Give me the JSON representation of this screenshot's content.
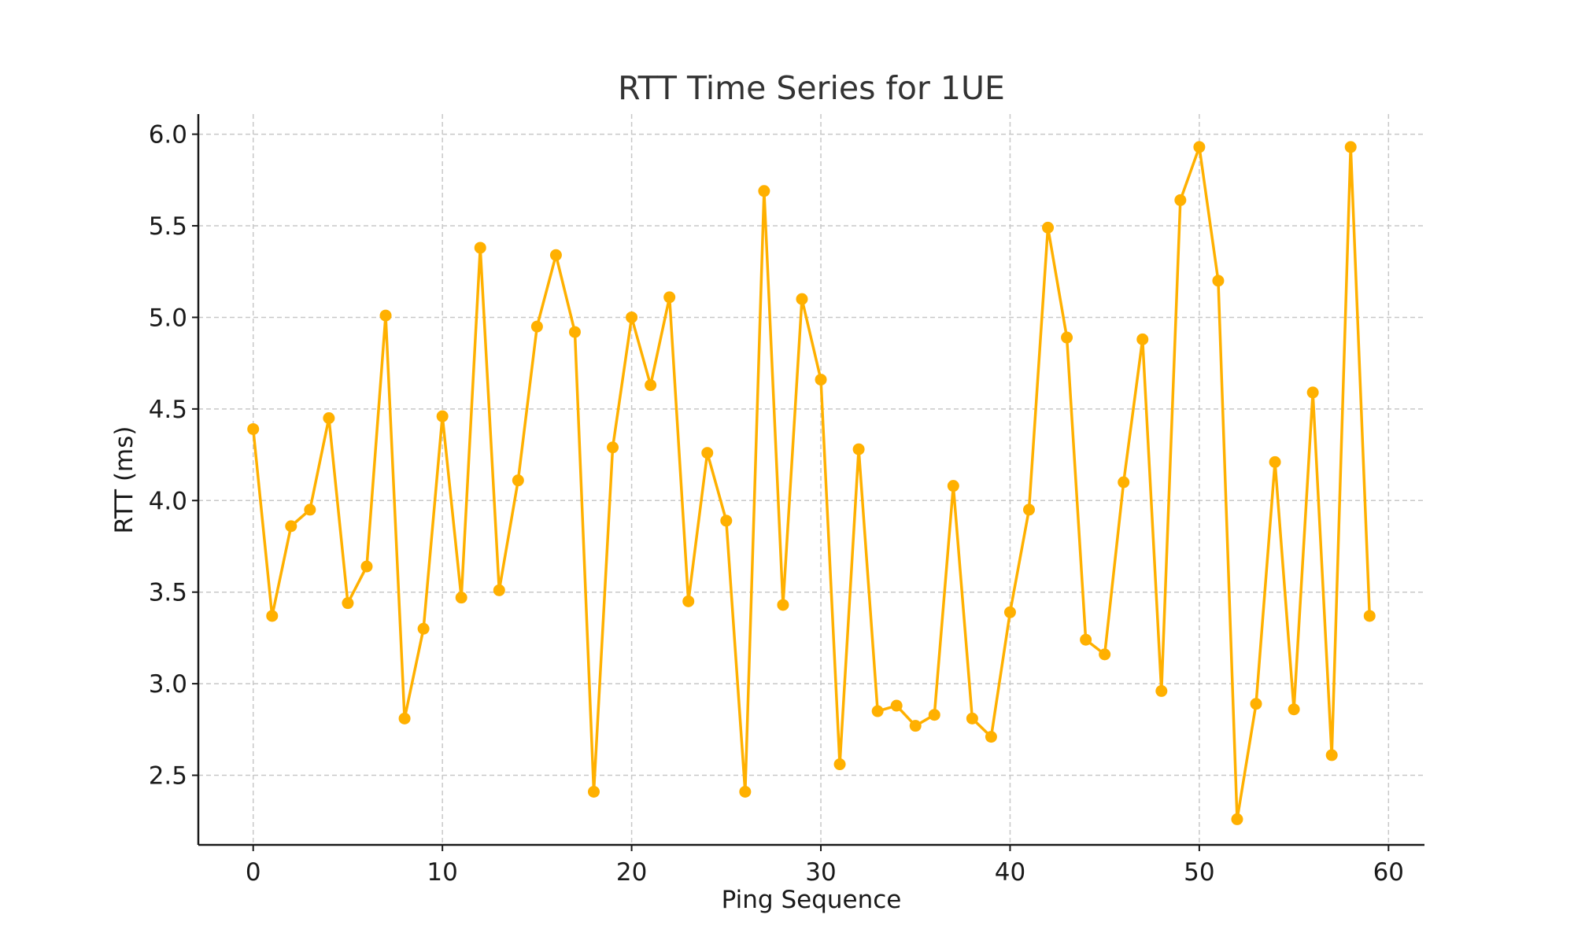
{
  "chart_data": {
    "type": "line",
    "title": "RTT Time Series for 1UE",
    "xlabel": "Ping Sequence",
    "ylabel": "RTT (ms)",
    "xlim": [
      -2.9,
      61.9
    ],
    "ylim": [
      2.12,
      6.11
    ],
    "xticks": [
      0,
      10,
      20,
      30,
      40,
      50,
      60
    ],
    "xtick_labels": [
      "0",
      "10",
      "20",
      "30",
      "40",
      "50",
      "60"
    ],
    "yticks": [
      2.5,
      3.0,
      3.5,
      4.0,
      4.5,
      5.0,
      5.5,
      6.0
    ],
    "ytick_labels": [
      "2.5",
      "3.0",
      "3.5",
      "4.0",
      "4.5",
      "5.0",
      "5.5",
      "6.0"
    ],
    "grid": true,
    "color": "#FFB000",
    "series": [
      {
        "x": [
          0,
          1,
          2,
          3,
          4,
          5,
          6,
          7,
          8,
          9,
          10,
          11,
          12,
          13,
          14,
          15,
          16,
          17,
          18,
          19,
          20,
          21,
          22,
          23,
          24,
          25,
          26,
          27,
          28,
          29,
          30,
          31,
          32,
          33,
          34,
          35,
          36,
          37,
          38,
          39,
          40,
          41,
          42,
          43,
          44,
          45,
          46,
          47,
          48,
          49,
          50,
          51,
          52,
          53,
          54,
          55,
          56,
          57,
          58,
          59
        ],
        "values": [
          4.39,
          3.37,
          3.86,
          3.95,
          4.45,
          3.44,
          3.64,
          5.01,
          2.81,
          3.3,
          4.46,
          3.47,
          5.38,
          3.51,
          4.11,
          4.95,
          5.34,
          4.92,
          2.41,
          4.29,
          5.0,
          4.63,
          5.11,
          3.45,
          4.26,
          3.89,
          2.41,
          5.69,
          3.43,
          5.1,
          4.66,
          2.56,
          4.28,
          2.85,
          2.88,
          2.77,
          2.83,
          4.08,
          2.81,
          2.71,
          3.39,
          3.95,
          5.49,
          4.89,
          3.24,
          3.16,
          4.1,
          4.88,
          2.96,
          5.64,
          5.93,
          5.2,
          2.26,
          2.89,
          4.21,
          2.86,
          4.59,
          2.61,
          5.93,
          3.37
        ]
      }
    ]
  }
}
